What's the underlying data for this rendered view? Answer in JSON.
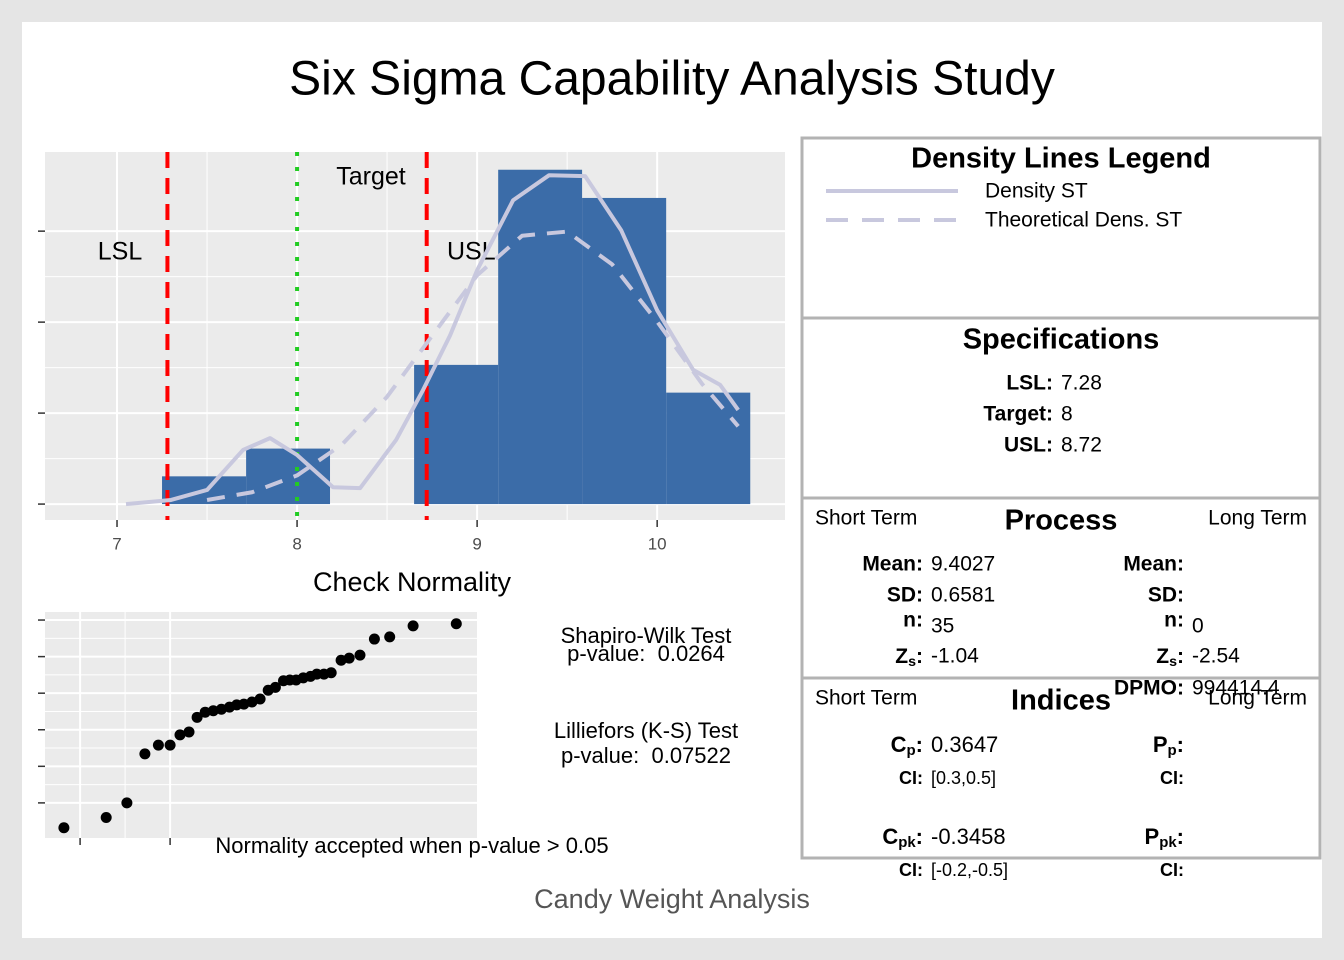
{
  "title": "Six Sigma Capability Analysis Study",
  "footer": "Candy Weight Analysis",
  "chart_data": [
    {
      "type": "histogram",
      "bins": [
        7.25,
        7.717,
        8.183,
        8.65,
        9.117,
        9.583,
        10.05,
        10.517
      ],
      "values": [
        0.061,
        0.122,
        0,
        0.306,
        0.735,
        0.673,
        0.245
      ],
      "color": "#3b6ca8",
      "xlim": [
        6.6,
        10.71
      ],
      "xticks": [
        7,
        8,
        9,
        10
      ],
      "ylim": [
        -0.035,
        0.774
      ],
      "yticks": [
        0,
        0.2,
        0.4,
        0.6
      ],
      "grid": true,
      "reference_lines": [
        {
          "label": "LSL",
          "value": 7.28,
          "color": "#ff0000",
          "style": "dashed"
        },
        {
          "label": "Target",
          "value": 8,
          "color": "#22cc22",
          "style": "dotted"
        },
        {
          "label": "USL",
          "value": 8.72,
          "color": "#ff0000",
          "style": "dashed"
        }
      ],
      "series": [
        {
          "name": "Density ST",
          "color": "#c8c8de",
          "style": "solid",
          "x": [
            7.05,
            7.3,
            7.5,
            7.7,
            7.85,
            8.0,
            8.2,
            8.35,
            8.55,
            8.7,
            8.85,
            9.0,
            9.2,
            9.4,
            9.6,
            9.8,
            10.0,
            10.2,
            10.35,
            10.45
          ],
          "values": [
            0,
            0.009,
            0.031,
            0.119,
            0.145,
            0.108,
            0.037,
            0.035,
            0.141,
            0.251,
            0.371,
            0.514,
            0.668,
            0.723,
            0.721,
            0.602,
            0.426,
            0.295,
            0.262,
            0.207
          ]
        },
        {
          "name": "Theoretical Dens. ST",
          "color": "#c8c8de",
          "style": "dashed",
          "x": [
            7.5,
            7.75,
            8.0,
            8.25,
            8.5,
            8.75,
            9.0,
            9.25,
            9.5,
            9.75,
            10.0,
            10.25,
            10.45
          ],
          "values": [
            0.009,
            0.026,
            0.063,
            0.131,
            0.236,
            0.37,
            0.503,
            0.59,
            0.599,
            0.527,
            0.401,
            0.264,
            0.171
          ]
        }
      ]
    },
    {
      "type": "scatter",
      "title": "Check Normality",
      "x": [
        -2.18,
        -1.71,
        -1.48,
        -1.28,
        -1.13,
        -1.0,
        -0.89,
        -0.79,
        -0.7,
        -0.61,
        -0.52,
        -0.43,
        -0.34,
        -0.26,
        -0.18,
        -0.09,
        0,
        0.09,
        0.17,
        0.26,
        0.33,
        0.4,
        0.48,
        0.56,
        0.63,
        0.71,
        0.79,
        0.9,
        0.99,
        1.11,
        1.27,
        1.44,
        1.7,
        2.18
      ],
      "values": [
        7.66,
        7.8,
        8.0,
        8.67,
        8.79,
        8.79,
        8.93,
        8.97,
        9.17,
        9.24,
        9.26,
        9.28,
        9.31,
        9.34,
        9.35,
        9.38,
        9.42,
        9.54,
        9.58,
        9.67,
        9.68,
        9.68,
        9.71,
        9.73,
        9.76,
        9.76,
        9.78,
        9.95,
        9.98,
        10.02,
        10.24,
        10.27,
        10.42,
        10.45
      ],
      "color": "#000000",
      "xlim": [
        -2.39,
        2.41
      ],
      "xticks": [
        -2,
        -1
      ],
      "ylim": [
        7.52,
        10.61
      ],
      "yticks": [
        8,
        8.5,
        9,
        9.5,
        10,
        10.5
      ],
      "grid": true
    }
  ],
  "normality_tests": {
    "tests": [
      {
        "name": "Shapiro-Wilk Test",
        "p_value": "p-value:  0.0264"
      },
      {
        "name": "Lilliefors (K-S) Test",
        "p_value": "p-value:  0.07522"
      }
    ],
    "note": "Normality accepted when p-value > 0.05"
  },
  "legend_panel": {
    "title": "Density Lines Legend"
  },
  "specifications": {
    "title": "Specifications",
    "labels": [
      "LSL:",
      "Target:",
      "USL:"
    ]
  },
  "process": {
    "title": "Process",
    "short_term_label": "Short Term",
    "long_term_label": "Long Term",
    "short_term": [
      {
        "label": "Mean:",
        "value": 9.4027
      },
      {
        "label": "SD:",
        "value": 0.6581
      },
      {
        "label": "n:",
        "value": 35
      },
      {
        "label": "Z",
        "sub": "s",
        "colon": ":",
        "value": -1.04
      }
    ],
    "long_term": [
      {
        "label": "Mean:"
      },
      {
        "label": "SD:"
      },
      {
        "label": "n:",
        "value": 0
      },
      {
        "label": "Z",
        "sub": "s",
        "colon": ":",
        "value": -2.54
      },
      {
        "label": "DPMO:",
        "value": 994414.4
      }
    ]
  },
  "indices": {
    "title": "Indices",
    "short_term_label": "Short Term",
    "long_term_label": "Long Term",
    "short_term": [
      {
        "label": "C",
        "sub": "p",
        "colon": ":",
        "value": 0.3647,
        "ci_label": "CI:",
        "ci": "[0.3,0.5]"
      },
      {
        "label": "C",
        "sub": "pk",
        "colon": ":",
        "value": -0.3458,
        "ci_label": "CI:",
        "ci": "[-0.2,-0.5]"
      }
    ],
    "long_term": [
      {
        "label": "P",
        "sub": "p",
        "colon": ":",
        "ci_label": "CI:"
      },
      {
        "label": "P",
        "sub": "pk",
        "colon": ":",
        "ci_label": "CI:"
      }
    ]
  }
}
